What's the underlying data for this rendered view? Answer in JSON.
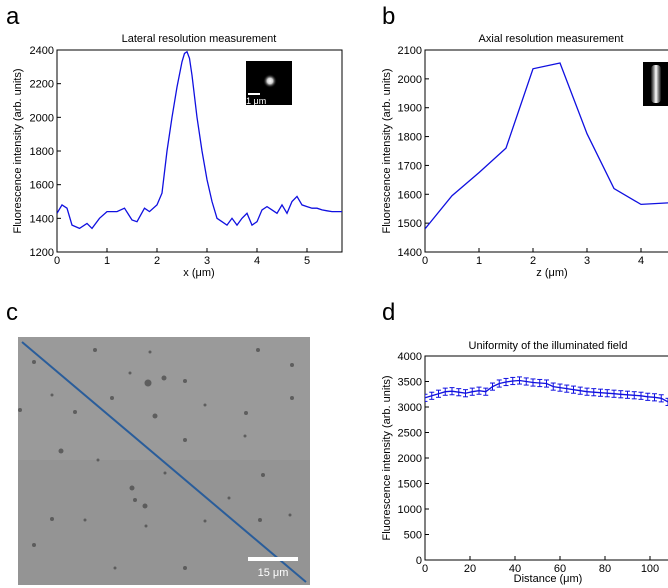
{
  "panels": {
    "a": {
      "letter": "a",
      "title": "Lateral resolution measurement",
      "xlabel": "x (μm)",
      "ylabel": "Fluorescence intensity (arb. units)",
      "inset_scale_label": "1 μm"
    },
    "b": {
      "letter": "b",
      "title": "Axial resolution measurement",
      "xlabel": "z (μm)",
      "ylabel": "Fluorescence intensity (arb. units)"
    },
    "c": {
      "letter": "c",
      "scale_bar_label": "15 μm"
    },
    "d": {
      "letter": "d",
      "title": "Uniformity of the illuminated field",
      "xlabel": "Distance (μm)",
      "ylabel": "Fluorescence intensity (arb. units)"
    }
  },
  "colors": {
    "line": "#1010e0",
    "image_line": "#2a5d9a"
  },
  "chart_data": [
    {
      "type": "line",
      "title": "Lateral resolution measurement",
      "xlabel": "x (μm)",
      "ylabel": "Fluorescence intensity (arb. units)",
      "xlim": [
        0,
        5.7
      ],
      "ylim": [
        1200,
        2400
      ],
      "xticks": [
        0,
        1,
        2,
        3,
        4,
        5
      ],
      "yticks": [
        1200,
        1400,
        1600,
        1800,
        2000,
        2200,
        2400
      ],
      "x": [
        0,
        0.1,
        0.2,
        0.3,
        0.45,
        0.6,
        0.7,
        0.85,
        1.0,
        1.2,
        1.35,
        1.5,
        1.6,
        1.75,
        1.85,
        2.0,
        2.1,
        2.2,
        2.3,
        2.4,
        2.5,
        2.55,
        2.6,
        2.65,
        2.7,
        2.8,
        2.9,
        3.0,
        3.1,
        3.2,
        3.3,
        3.4,
        3.5,
        3.6,
        3.7,
        3.8,
        3.9,
        4.0,
        4.1,
        4.2,
        4.3,
        4.4,
        4.5,
        4.6,
        4.7,
        4.8,
        4.9,
        5.0,
        5.1,
        5.2,
        5.3,
        5.4,
        5.5,
        5.6,
        5.7
      ],
      "y": [
        1430,
        1480,
        1460,
        1360,
        1340,
        1370,
        1340,
        1400,
        1440,
        1440,
        1460,
        1390,
        1380,
        1460,
        1440,
        1480,
        1550,
        1800,
        2000,
        2180,
        2330,
        2380,
        2390,
        2350,
        2250,
        2000,
        1800,
        1630,
        1500,
        1400,
        1380,
        1360,
        1400,
        1360,
        1400,
        1430,
        1360,
        1380,
        1450,
        1470,
        1450,
        1430,
        1480,
        1430,
        1500,
        1530,
        1480,
        1470,
        1460,
        1460,
        1450,
        1445,
        1440,
        1440,
        1440
      ]
    },
    {
      "type": "line",
      "title": "Axial resolution measurement",
      "xlabel": "z (μm)",
      "ylabel": "Fluorescence intensity (arb. units)",
      "xlim": [
        0,
        4.5
      ],
      "ylim": [
        1400,
        2100
      ],
      "xticks": [
        0,
        1,
        2,
        3,
        4
      ],
      "yticks": [
        1400,
        1500,
        1600,
        1700,
        1800,
        1900,
        2000,
        2100
      ],
      "x": [
        0,
        0.5,
        1.0,
        1.5,
        2.0,
        2.5,
        3.0,
        3.5,
        4.0,
        4.5
      ],
      "y": [
        1480,
        1595,
        1675,
        1760,
        2035,
        2055,
        1810,
        1620,
        1565,
        1570
      ]
    },
    {
      "type": "line",
      "title": "Uniformity of the illuminated field",
      "xlabel": "Distance (μm)",
      "ylabel": "Fluorescence intensity (arb. units)",
      "xlim": [
        0,
        108
      ],
      "ylim": [
        0,
        4000
      ],
      "xticks": [
        0,
        20,
        40,
        60,
        80,
        100
      ],
      "yticks": [
        0,
        500,
        1000,
        1500,
        2000,
        2500,
        3000,
        3500,
        4000
      ],
      "error_bars": true,
      "x": [
        0,
        3,
        6,
        9,
        12,
        15,
        18,
        21,
        24,
        27,
        30,
        33,
        36,
        39,
        42,
        45,
        48,
        51,
        54,
        57,
        60,
        63,
        66,
        69,
        72,
        75,
        78,
        81,
        84,
        87,
        90,
        93,
        96,
        99,
        102,
        105,
        108
      ],
      "y": [
        3180,
        3220,
        3260,
        3300,
        3310,
        3290,
        3270,
        3300,
        3320,
        3300,
        3400,
        3460,
        3490,
        3510,
        3520,
        3500,
        3480,
        3470,
        3460,
        3400,
        3380,
        3360,
        3340,
        3320,
        3300,
        3290,
        3280,
        3270,
        3260,
        3250,
        3240,
        3230,
        3220,
        3200,
        3190,
        3170,
        3100
      ],
      "err": [
        70,
        70,
        70,
        70,
        70,
        70,
        70,
        70,
        70,
        70,
        70,
        70,
        70,
        70,
        70,
        70,
        70,
        70,
        70,
        70,
        70,
        70,
        70,
        70,
        70,
        70,
        70,
        70,
        70,
        70,
        70,
        70,
        70,
        70,
        70,
        70,
        70
      ]
    }
  ]
}
